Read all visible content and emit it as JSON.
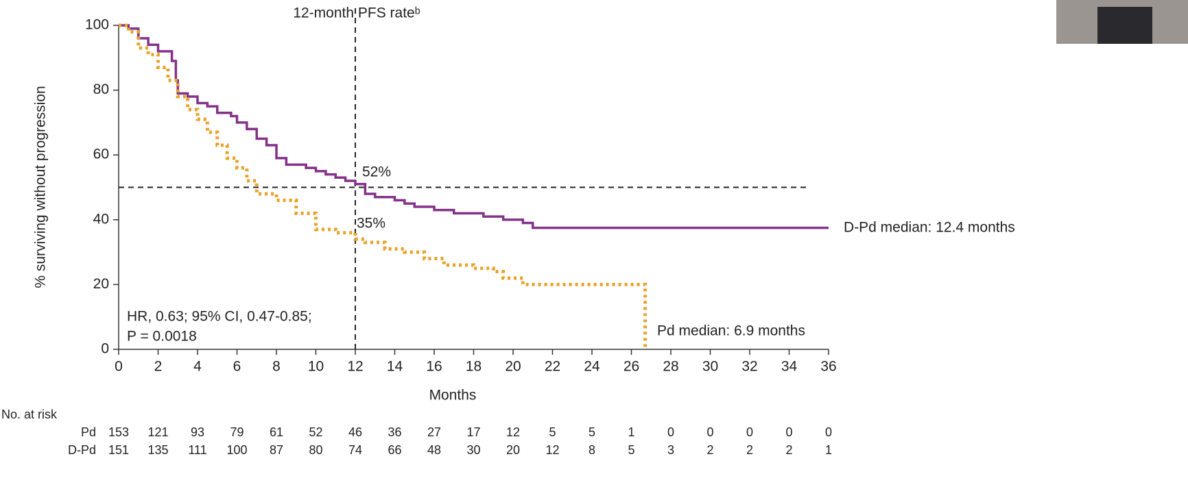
{
  "chart_data": {
    "type": "line",
    "step": true,
    "ylabel": "% surviving without progression",
    "xlabel": "Months",
    "xlim": [
      0,
      36
    ],
    "xticks": [
      0,
      2,
      4,
      6,
      8,
      10,
      12,
      14,
      16,
      18,
      20,
      22,
      24,
      26,
      28,
      30,
      32,
      34,
      36
    ],
    "ylim": [
      0,
      100
    ],
    "yticks": [
      0,
      20,
      40,
      60,
      80,
      100
    ],
    "series": [
      {
        "color": "#84318a",
        "dash": false,
        "x": [
          0,
          0.5,
          1,
          1.5,
          2,
          2.7,
          2.9,
          3,
          3.5,
          4,
          4.5,
          5,
          5.7,
          6,
          6.5,
          7,
          7.5,
          8,
          8.5,
          9.5,
          10,
          10.5,
          11,
          11.5,
          12,
          12.5,
          13,
          14,
          14.5,
          15,
          16,
          17,
          18.5,
          19.5,
          20.5,
          21,
          36
        ],
        "values": [
          100,
          99,
          96,
          94,
          92,
          89,
          83,
          79,
          78,
          76,
          75,
          73,
          72,
          70,
          68,
          65,
          63,
          59,
          57,
          56,
          55,
          54,
          53,
          52,
          51,
          48,
          47,
          46,
          45,
          44,
          43,
          42,
          41,
          40,
          39,
          37.5,
          37.5
        ]
      },
      {
        "color": "#e9a22a",
        "dash": true,
        "x": [
          0,
          0.5,
          1,
          1.5,
          2,
          2.5,
          3,
          3.5,
          4,
          4.5,
          5,
          5.5,
          6,
          6.5,
          7,
          8,
          9,
          10,
          11,
          12,
          12.5,
          13.5,
          14.5,
          15.5,
          16.5,
          18,
          19,
          19.5,
          20.5,
          26.7
        ],
        "values": [
          100,
          98,
          93,
          91,
          87,
          83,
          78,
          74,
          71,
          67,
          63,
          59,
          56,
          52,
          48,
          46,
          42,
          37,
          36,
          34,
          33,
          31,
          30,
          28,
          26,
          25,
          24,
          22,
          20,
          0
        ]
      }
    ],
    "vline": 12,
    "hline": {
      "y": 50,
      "x": [
        0,
        35
      ]
    },
    "annotations": [
      "12-month PFS rateᵇ",
      "52%",
      "35%",
      "D-Pd median: 12.4 months",
      "Pd median: 6.9 months",
      "HR, 0.63; 95% CI, 0.47-0.85;",
      "P = 0.0018"
    ],
    "risk_table": {
      "title": "No. at risk",
      "rows": [
        {
          "label": "Pd",
          "counts": [
            153,
            121,
            93,
            79,
            61,
            52,
            46,
            36,
            27,
            17,
            12,
            5,
            5,
            1,
            0,
            0,
            0,
            0,
            0
          ]
        },
        {
          "label": "D-Pd",
          "counts": [
            151,
            135,
            111,
            100,
            87,
            80,
            74,
            66,
            48,
            30,
            20,
            12,
            8,
            5,
            3,
            2,
            2,
            2,
            1
          ]
        }
      ]
    }
  }
}
